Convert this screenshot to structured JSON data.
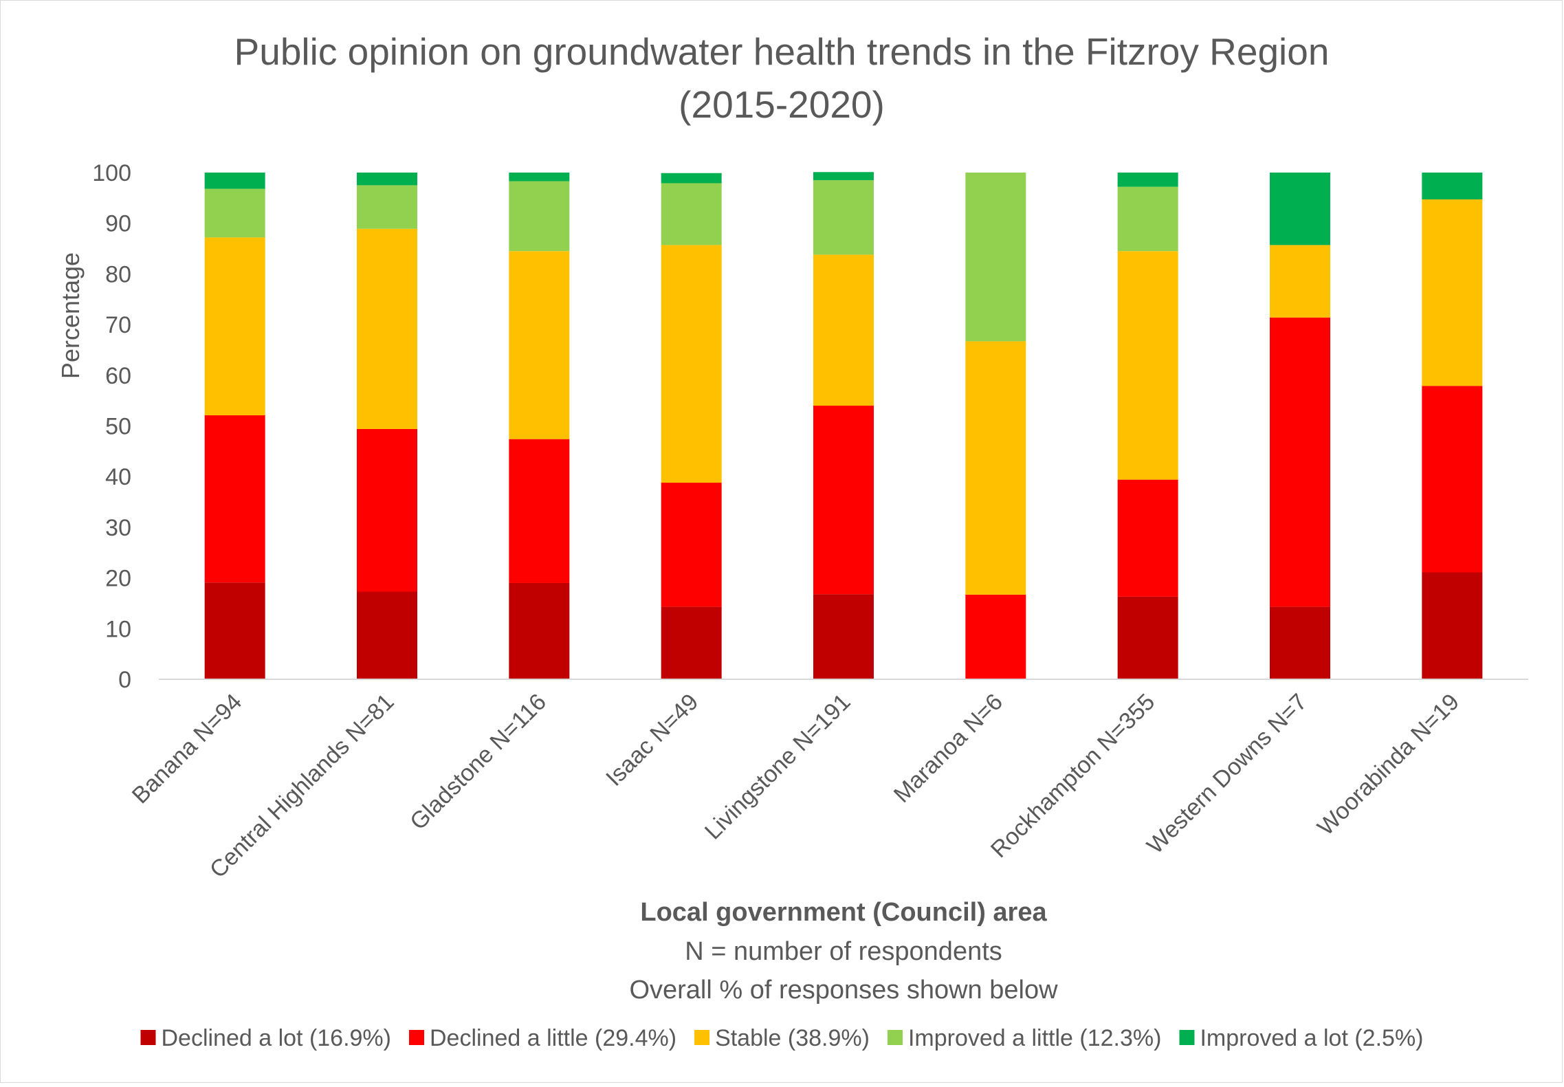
{
  "chart_data": {
    "type": "bar",
    "stacked": true,
    "title_lines": [
      "Public opinion on groundwater health trends in the Fitzroy Region",
      "(2015-2020)"
    ],
    "ylabel": "Percentage",
    "xlabel_lines": [
      "Local government (Council) area",
      "N = number of respondents",
      "Overall % of responses shown below"
    ],
    "ylim": [
      0,
      100
    ],
    "yticks": [
      "0",
      "10",
      "20",
      "30",
      "40",
      "50",
      "60",
      "70",
      "80",
      "90",
      "100"
    ],
    "grid": false,
    "legend_position": "bottom",
    "categories": [
      "Banana N=94",
      "Central Highlands N=81",
      "Gladstone N=116",
      "Isaac N=49",
      "Livingstone N=191",
      "Maranoa N=6",
      "Rockhampton N=355",
      "Western Downs N=7",
      "Woorabinda N=19"
    ],
    "series": [
      {
        "name": "Declined a lot (16.9%)",
        "color": "#c00000",
        "values": [
          19.1,
          17.3,
          19.0,
          14.3,
          16.8,
          0,
          16.3,
          14.3,
          21.1
        ]
      },
      {
        "name": "Declined a little (29.4%)",
        "color": "#ff0000",
        "values": [
          33.0,
          32.1,
          28.4,
          24.5,
          37.2,
          16.7,
          23.1,
          57.1,
          36.8
        ]
      },
      {
        "name": "Stable (38.9%)",
        "color": "#ffc000",
        "values": [
          35.1,
          39.5,
          37.1,
          46.9,
          29.8,
          50.0,
          45.1,
          14.3,
          36.8
        ]
      },
      {
        "name": "Improved a little (12.3%)",
        "color": "#92d050",
        "values": [
          9.6,
          8.6,
          13.8,
          12.2,
          14.7,
          33.3,
          12.7,
          0,
          0
        ]
      },
      {
        "name": "Improved a lot (2.5%)",
        "color": "#00b050",
        "values": [
          3.2,
          2.5,
          1.7,
          2.0,
          1.6,
          0,
          2.8,
          14.3,
          5.3
        ]
      }
    ]
  }
}
